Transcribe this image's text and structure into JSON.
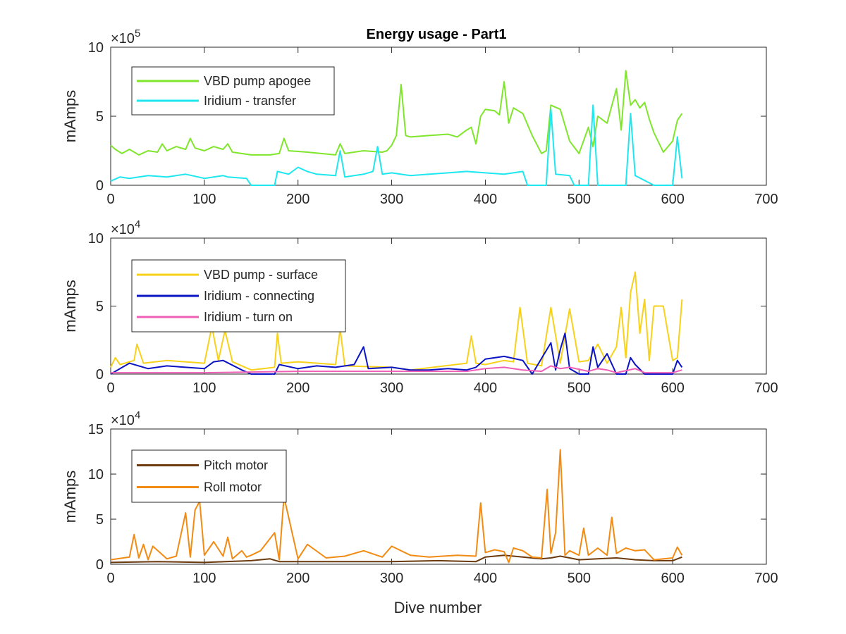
{
  "figure": {
    "title": "Energy usage - Part1",
    "xlabel": "Dive number"
  },
  "chart_data": [
    {
      "type": "line",
      "title": "Energy usage - Part1",
      "xlabel": "",
      "ylabel": "mAmps",
      "exponent_label": "×10",
      "exponent_power": "5",
      "xlim": [
        0,
        700
      ],
      "ylim": [
        0,
        10
      ],
      "xticks": [
        "0",
        "100",
        "200",
        "300",
        "400",
        "500",
        "600",
        "700"
      ],
      "yticks": [
        "0",
        "5",
        "10"
      ],
      "legend_position": "top-left",
      "series": [
        {
          "name": "VBD pump apogee",
          "color": "#7fe62c",
          "x": [
            0,
            5,
            12,
            20,
            30,
            40,
            50,
            55,
            60,
            70,
            80,
            85,
            90,
            100,
            110,
            120,
            125,
            130,
            150,
            170,
            180,
            185,
            190,
            210,
            240,
            245,
            250,
            270,
            290,
            295,
            300,
            305,
            310,
            315,
            320,
            340,
            360,
            370,
            380,
            385,
            390,
            395,
            400,
            410,
            415,
            420,
            425,
            430,
            440,
            450,
            460,
            465,
            470,
            480,
            490,
            500,
            510,
            515,
            520,
            530,
            540,
            545,
            550,
            555,
            560,
            565,
            570,
            575,
            580,
            590,
            600,
            605,
            610
          ],
          "y": [
            2.9,
            2.6,
            2.3,
            2.6,
            2.2,
            2.5,
            2.4,
            3.0,
            2.5,
            2.8,
            2.6,
            3.4,
            2.7,
            2.5,
            2.8,
            2.6,
            3.0,
            2.4,
            2.2,
            2.2,
            2.3,
            3.4,
            2.5,
            2.4,
            2.2,
            3.0,
            2.3,
            2.5,
            2.4,
            2.5,
            2.9,
            3.6,
            7.3,
            3.6,
            3.5,
            3.6,
            3.7,
            3.5,
            4.0,
            4.2,
            3.0,
            5.0,
            5.5,
            5.4,
            5.1,
            7.5,
            4.5,
            5.6,
            5.2,
            3.6,
            2.3,
            2.5,
            5.8,
            5.5,
            3.2,
            2.3,
            4.2,
            2.8,
            5.0,
            4.5,
            7.0,
            4.0,
            8.3,
            5.8,
            6.2,
            5.6,
            6.0,
            4.8,
            3.8,
            2.4,
            3.2,
            4.7,
            5.2
          ]
        },
        {
          "name": "Iridium - transfer",
          "color": "#1ee7ef",
          "x": [
            0,
            10,
            20,
            40,
            60,
            80,
            100,
            120,
            125,
            145,
            150,
            175,
            178,
            190,
            200,
            210,
            220,
            240,
            245,
            250,
            270,
            280,
            285,
            290,
            300,
            320,
            340,
            360,
            380,
            400,
            420,
            440,
            445,
            460,
            465,
            470,
            475,
            490,
            495,
            510,
            515,
            520,
            530,
            540,
            550,
            555,
            560,
            580,
            600,
            605,
            610
          ],
          "y": [
            0.3,
            0.6,
            0.5,
            0.7,
            0.6,
            0.8,
            0.5,
            0.7,
            0.6,
            0.5,
            0.0,
            0.0,
            1.0,
            0.8,
            1.3,
            1.0,
            0.8,
            0.7,
            2.5,
            0.6,
            0.8,
            1.0,
            2.8,
            0.8,
            0.9,
            0.7,
            0.8,
            0.9,
            1.0,
            0.9,
            0.8,
            1.0,
            0.0,
            0.0,
            0.0,
            5.5,
            0.8,
            0.7,
            0.0,
            0.0,
            5.8,
            0.0,
            0.0,
            0.0,
            0.0,
            5.2,
            0.7,
            0.0,
            0.0,
            3.5,
            0.5
          ]
        }
      ]
    },
    {
      "type": "line",
      "title": "",
      "xlabel": "",
      "ylabel": "mAmps",
      "exponent_label": "×10",
      "exponent_power": "4",
      "xlim": [
        0,
        700
      ],
      "ylim": [
        0,
        10
      ],
      "xticks": [
        "0",
        "100",
        "200",
        "300",
        "400",
        "500",
        "600",
        "700"
      ],
      "yticks": [
        "0",
        "5",
        "10"
      ],
      "legend_position": "top-left",
      "series": [
        {
          "name": "VBD pump - surface",
          "color": "#f7d11a",
          "x": [
            0,
            5,
            10,
            25,
            28,
            35,
            60,
            100,
            108,
            115,
            122,
            130,
            150,
            175,
            178,
            182,
            200,
            240,
            245,
            250,
            300,
            320,
            380,
            385,
            390,
            400,
            420,
            430,
            437,
            445,
            460,
            470,
            480,
            490,
            500,
            510,
            520,
            530,
            540,
            545,
            550,
            555,
            560,
            565,
            570,
            575,
            580,
            590,
            600,
            605,
            610
          ],
          "y": [
            0.5,
            1.2,
            0.7,
            1.0,
            2.2,
            0.8,
            1.0,
            0.8,
            3.5,
            1.0,
            3.2,
            0.9,
            0.3,
            0.5,
            3.0,
            0.8,
            0.9,
            0.7,
            3.3,
            0.6,
            0.5,
            0.3,
            0.8,
            2.8,
            0.8,
            0.7,
            1.0,
            0.9,
            4.9,
            0.8,
            0.6,
            4.9,
            0.8,
            4.8,
            0.9,
            1.0,
            2.2,
            0.8,
            2.0,
            4.9,
            1.2,
            6.0,
            7.5,
            3.0,
            5.5,
            1.0,
            5.0,
            5.0,
            1.0,
            1.2,
            5.5
          ]
        },
        {
          "name": "Iridium - connecting",
          "color": "#0a14c4",
          "x": [
            0,
            10,
            20,
            40,
            60,
            80,
            100,
            110,
            120,
            140,
            150,
            175,
            180,
            200,
            220,
            240,
            260,
            270,
            275,
            300,
            320,
            340,
            360,
            380,
            390,
            400,
            420,
            440,
            450,
            470,
            475,
            480,
            485,
            490,
            500,
            510,
            515,
            520,
            530,
            540,
            550,
            555,
            560,
            570,
            580,
            600,
            605,
            610
          ],
          "y": [
            0.0,
            0.4,
            0.8,
            0.4,
            0.6,
            0.5,
            0.4,
            0.9,
            1.0,
            0.3,
            0.0,
            0.0,
            0.7,
            0.4,
            0.6,
            0.5,
            0.7,
            2.0,
            0.4,
            0.5,
            0.3,
            0.3,
            0.4,
            0.3,
            0.5,
            1.1,
            1.3,
            1.0,
            0.0,
            2.3,
            0.3,
            1.8,
            3.0,
            0.4,
            0.0,
            0.0,
            2.0,
            0.5,
            1.5,
            0.0,
            0.0,
            1.2,
            0.7,
            0.0,
            0.0,
            0.0,
            1.0,
            0.5
          ]
        },
        {
          "name": "Iridium - turn on",
          "color": "#ef5fb5",
          "x": [
            0,
            100,
            200,
            300,
            380,
            400,
            420,
            440,
            460,
            470,
            480,
            490,
            510,
            520,
            530,
            540,
            560,
            570,
            600,
            610
          ],
          "y": [
            0.1,
            0.1,
            0.2,
            0.2,
            0.2,
            0.4,
            0.5,
            0.3,
            0.2,
            0.6,
            0.4,
            0.5,
            0.2,
            0.4,
            0.3,
            0.1,
            0.4,
            0.1,
            0.1,
            0.3
          ]
        }
      ]
    },
    {
      "type": "line",
      "title": "",
      "xlabel": "Dive number",
      "ylabel": "mAmps",
      "exponent_label": "×10",
      "exponent_power": "4",
      "xlim": [
        0,
        700
      ],
      "ylim": [
        0,
        15
      ],
      "xticks": [
        "0",
        "100",
        "200",
        "300",
        "400",
        "500",
        "600",
        "700"
      ],
      "yticks": [
        "0",
        "5",
        "10",
        "15"
      ],
      "legend_position": "top-left",
      "series": [
        {
          "name": "Pitch motor",
          "color": "#6b3a0f",
          "x": [
            0,
            50,
            100,
            150,
            170,
            180,
            200,
            250,
            300,
            350,
            390,
            400,
            420,
            440,
            460,
            470,
            480,
            490,
            500,
            520,
            540,
            560,
            580,
            600,
            610
          ],
          "y": [
            0.2,
            0.3,
            0.2,
            0.4,
            0.6,
            0.3,
            0.3,
            0.3,
            0.3,
            0.4,
            0.3,
            0.8,
            1.0,
            0.8,
            0.6,
            0.7,
            0.9,
            0.7,
            0.5,
            0.6,
            0.7,
            0.5,
            0.4,
            0.4,
            0.8
          ]
        },
        {
          "name": "Roll motor",
          "color": "#f28b13",
          "x": [
            0,
            20,
            25,
            30,
            35,
            40,
            45,
            60,
            70,
            80,
            85,
            90,
            95,
            100,
            110,
            120,
            125,
            130,
            140,
            145,
            150,
            160,
            175,
            180,
            185,
            200,
            210,
            230,
            250,
            270,
            290,
            300,
            320,
            340,
            370,
            390,
            395,
            400,
            410,
            420,
            425,
            430,
            440,
            450,
            460,
            466,
            470,
            475,
            480,
            485,
            490,
            500,
            505,
            510,
            520,
            530,
            535,
            540,
            550,
            560,
            570,
            580,
            600,
            605,
            610
          ],
          "y": [
            0.5,
            0.8,
            3.3,
            0.7,
            2.2,
            0.5,
            2.0,
            0.6,
            0.9,
            5.7,
            0.8,
            6.0,
            7.0,
            1.0,
            2.5,
            0.9,
            3.0,
            0.6,
            1.5,
            0.8,
            1.0,
            1.5,
            3.5,
            0.5,
            7.5,
            0.6,
            2.2,
            0.7,
            0.9,
            1.5,
            0.8,
            2.0,
            1.0,
            0.8,
            1.0,
            0.9,
            6.8,
            1.3,
            1.6,
            1.4,
            0.2,
            1.8,
            1.5,
            0.8,
            0.7,
            8.3,
            1.2,
            3.5,
            12.7,
            1.0,
            1.5,
            1.0,
            4.0,
            1.0,
            1.8,
            1.0,
            5.2,
            1.2,
            1.8,
            1.5,
            1.6,
            0.5,
            0.7,
            1.9,
            1.0
          ]
        }
      ]
    }
  ]
}
